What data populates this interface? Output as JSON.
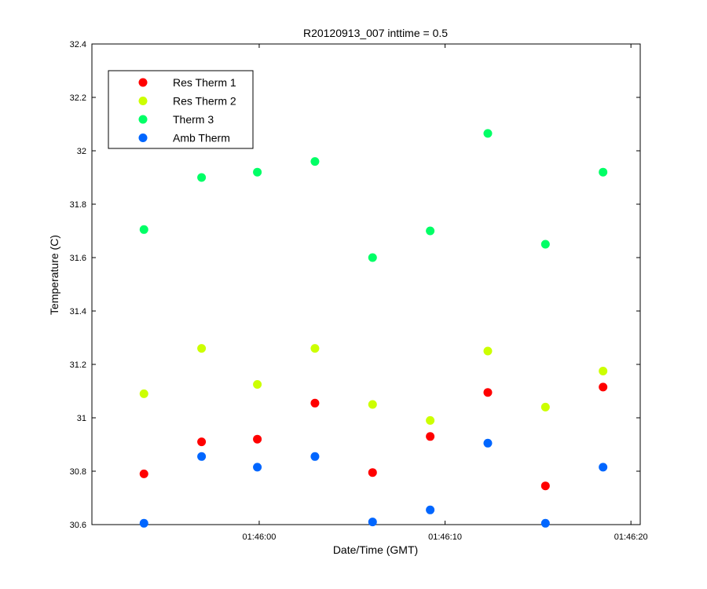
{
  "chart_data": {
    "type": "scatter",
    "title": "R20120913_007 inttime = 0.5",
    "xlabel": "Date/Time (GMT)",
    "ylabel": "Temperature (C)",
    "xlim": [
      "01:45:51.0",
      "01:46:20.5"
    ],
    "ylim": [
      30.6,
      32.4
    ],
    "x_ticks": [
      "01:46:00",
      "01:46:10",
      "01:46:20"
    ],
    "y_ticks": [
      "30.6",
      "30.8",
      "31",
      "31.2",
      "31.4",
      "31.6",
      "31.8",
      "32",
      "32.2",
      "32.4"
    ],
    "x": [
      "01:45:53.8",
      "01:45:56.9",
      "01:45:59.9",
      "01:46:03.0",
      "01:46:06.1",
      "01:46:09.2",
      "01:46:12.3",
      "01:46:15.4",
      "01:46:18.5"
    ],
    "series": [
      {
        "name": "Res Therm 1",
        "color": "#ff0000",
        "values": [
          30.79,
          30.91,
          30.92,
          31.055,
          30.795,
          30.93,
          31.095,
          30.745,
          31.115
        ]
      },
      {
        "name": "Res Therm 2",
        "color": "#ccff00",
        "values": [
          31.09,
          31.26,
          31.125,
          31.26,
          31.05,
          30.99,
          31.25,
          31.04,
          31.175
        ]
      },
      {
        "name": "Therm 3",
        "color": "#00ff66",
        "values": [
          31.705,
          31.9,
          31.92,
          31.96,
          31.6,
          31.7,
          32.065,
          31.65,
          31.92
        ]
      },
      {
        "name": "Amb Therm",
        "color": "#0066ff",
        "values": [
          30.605,
          30.855,
          30.815,
          30.855,
          30.61,
          30.655,
          30.905,
          30.605,
          30.815
        ]
      }
    ],
    "grid": false,
    "legend_position": "top-left"
  }
}
